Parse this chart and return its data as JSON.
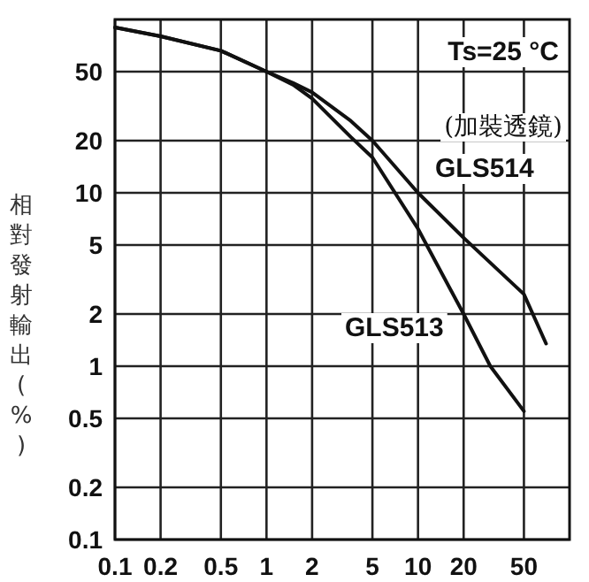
{
  "chart_data": {
    "type": "line",
    "ylabel": "相對發射輸出(%)",
    "annotations": [
      "Ts=25 °C",
      "(加裝透鏡)"
    ],
    "log": "xy",
    "grid": true,
    "xlim": [
      0.1,
      100
    ],
    "ylim": [
      0.1,
      100
    ],
    "xticks": [
      0.1,
      0.2,
      0.5,
      1,
      2,
      5,
      10,
      20,
      50
    ],
    "yticks": [
      0.1,
      0.2,
      0.5,
      1,
      2,
      5,
      10,
      20,
      50
    ],
    "series": [
      {
        "name": "GLS514",
        "color": "#111111",
        "x": [
          0.1,
          0.2,
          0.5,
          1,
          1.5,
          2,
          3.6,
          5,
          10,
          20,
          50,
          70
        ],
        "values": [
          90,
          80,
          66,
          50,
          43,
          38,
          26,
          20,
          10,
          5.5,
          2.6,
          1.35
        ]
      },
      {
        "name": "GLS513",
        "color": "#111111",
        "x": [
          0.1,
          0.2,
          0.5,
          1,
          1.5,
          2,
          3.6,
          5,
          10,
          20,
          30,
          50
        ],
        "values": [
          90,
          80,
          66,
          50,
          42,
          35,
          21,
          16,
          6.2,
          2,
          1,
          0.55
        ]
      }
    ]
  }
}
